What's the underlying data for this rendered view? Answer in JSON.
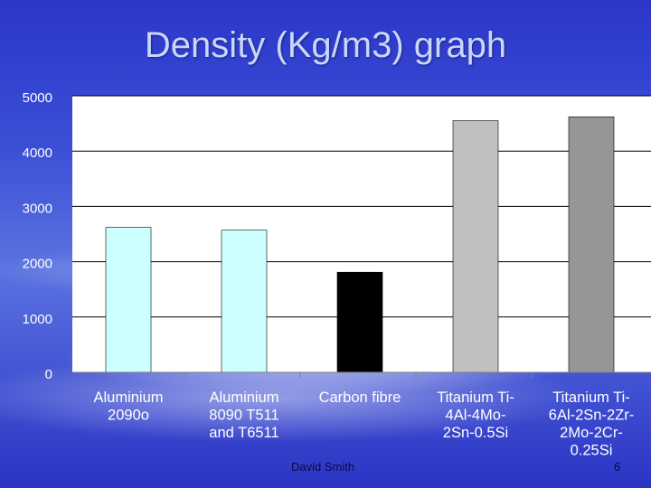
{
  "slide": {
    "title": "Density (Kg/m3) graph",
    "footer": "David Smith",
    "page_number": "6"
  },
  "colors": {
    "series_fill": [
      "#ccffff",
      "#ccffff",
      "#000000",
      "#c0c0c0",
      "#969696"
    ]
  },
  "chart_data": {
    "type": "bar",
    "title": "Density (Kg/m3) graph",
    "categories": [
      [
        "Aluminium",
        "2090o"
      ],
      [
        "Aluminium",
        "8090 T511",
        "and T6511"
      ],
      [
        "Carbon fibre"
      ],
      [
        "Titanium Ti-",
        "4Al-4Mo-",
        "2Sn-0.5Si"
      ],
      [
        "Titanium Ti-",
        "6Al-2Sn-2Zr-",
        "2Mo-2Cr-",
        "0.25Si"
      ]
    ],
    "values": [
      2620,
      2570,
      1810,
      4550,
      4620
    ],
    "y_ticks": [
      "5000",
      "4000",
      "3000",
      "2000",
      "1000",
      "0"
    ],
    "ylim": [
      0,
      5000
    ],
    "grid": true,
    "legend": "none",
    "xlabel": "",
    "ylabel": ""
  }
}
